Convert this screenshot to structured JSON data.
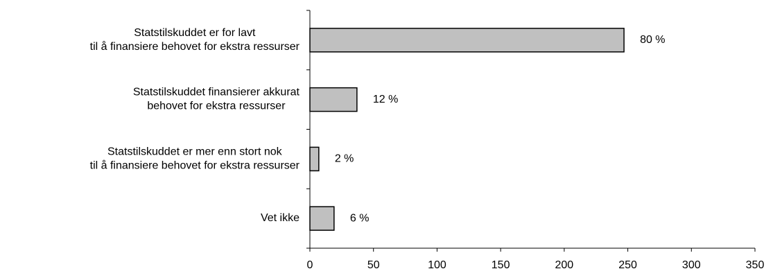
{
  "chart_data": {
    "type": "bar",
    "orientation": "horizontal",
    "categories": [
      "Statstilskuddet er for lavt\ntil å finansiere behovet for ekstra ressurser",
      "Statstilskuddet finansierer akkurat\nbehovet for ekstra ressurser",
      "Statstilskuddet er mer enn stort nok\ntil å finansiere behovet for ekstra ressurser",
      "Vet ikke"
    ],
    "values": [
      247,
      37,
      7,
      19
    ],
    "value_labels": [
      "80 %",
      "12 %",
      "2 %",
      "6 %"
    ],
    "color": "#c0c0c0",
    "xlim": [
      0,
      350
    ],
    "xticks": [
      0,
      50,
      100,
      150,
      200,
      250,
      300,
      350
    ],
    "grid": false
  }
}
